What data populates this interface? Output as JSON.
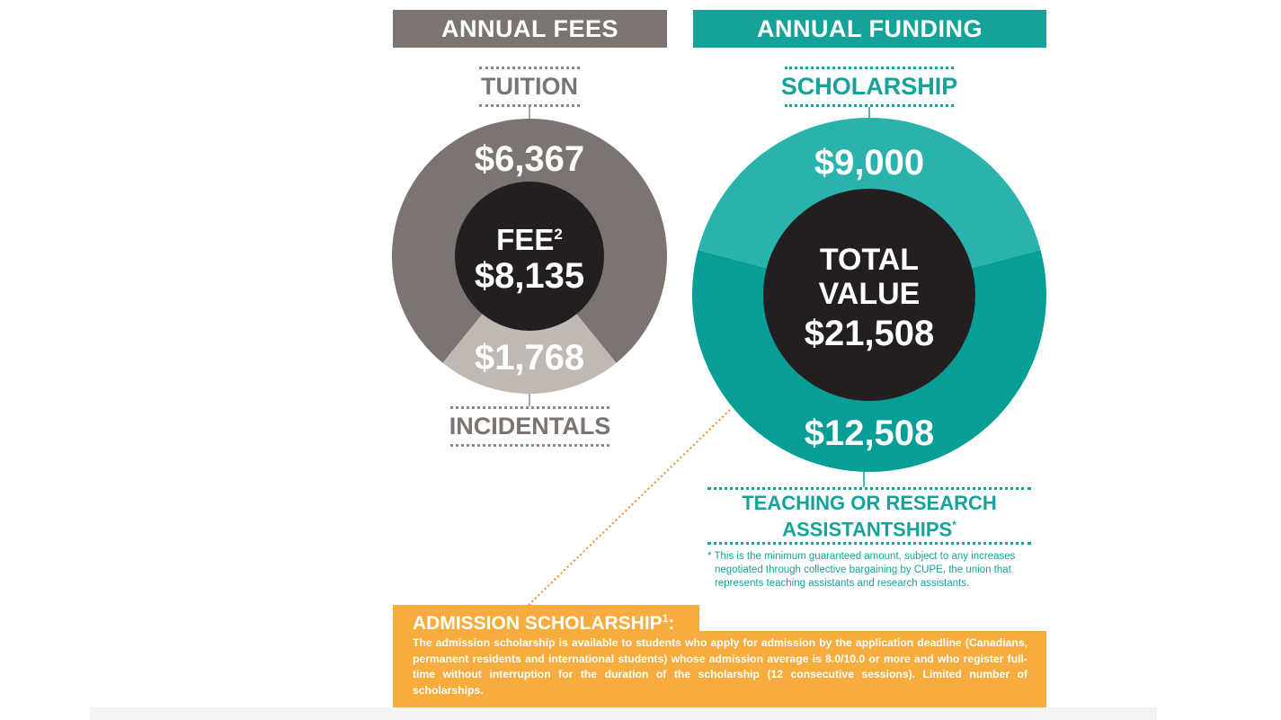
{
  "chart_data": [
    {
      "type": "pie",
      "title": "ANNUAL FEES",
      "categories": [
        "TUITION",
        "INCIDENTALS"
      ],
      "values": [
        6367,
        1768
      ],
      "value_labels": [
        "$6,367",
        "$1,768"
      ],
      "center_label": "FEE",
      "center_superscript": "2",
      "center_value": "$8,135",
      "colors": [
        "#7b7470",
        "#c0b8b3"
      ]
    },
    {
      "type": "pie",
      "title": "ANNUAL FUNDING",
      "categories": [
        "SCHOLARSHIP",
        "TEACHING OR RESEARCH ASSISTANTSHIPS"
      ],
      "values": [
        9000,
        12508
      ],
      "value_labels": [
        "$9,000",
        "$12,508"
      ],
      "center_label_line1": "TOTAL",
      "center_label_line2": "VALUE",
      "center_value": "$21,508",
      "colors": [
        "#2ab3ac",
        "#079e97"
      ]
    }
  ],
  "labels": {
    "fees_header": "ANNUAL FEES",
    "funding_header": "ANNUAL FUNDING",
    "tuition": "TUITION",
    "incidentals": "INCIDENTALS",
    "scholarship": "SCHOLARSHIP",
    "assist_line1": "TEACHING OR RESEARCH",
    "assist_line2": "ASSISTANTSHIPS",
    "assist_mark": "*"
  },
  "footnote": "* This is the minimum guaranteed amount, subject to any increases negotiated through collective bargaining by CUPE, the union that represents teaching assistants and research assistants.",
  "admission": {
    "title": "ADMISSION SCHOLARSHIP",
    "title_sup": "1",
    "title_suffix": ":",
    "text": "The admission scholarship is available to students who apply for admission by the application deadline (Canadians, permanent residents and international students) whose admission average is 8.0/10.0 or more and who register full-time without interruption for the duration of the scholarship (12 consecutive sessions). Limited number of scholarships."
  },
  "colors": {
    "fees_gray": "#7b7470",
    "incidentals_light": "#c0b8b3",
    "teal": "#14a39b",
    "teal_light": "#2ab3ac",
    "center_dark": "#231f20",
    "orange": "#f7ac3e"
  }
}
